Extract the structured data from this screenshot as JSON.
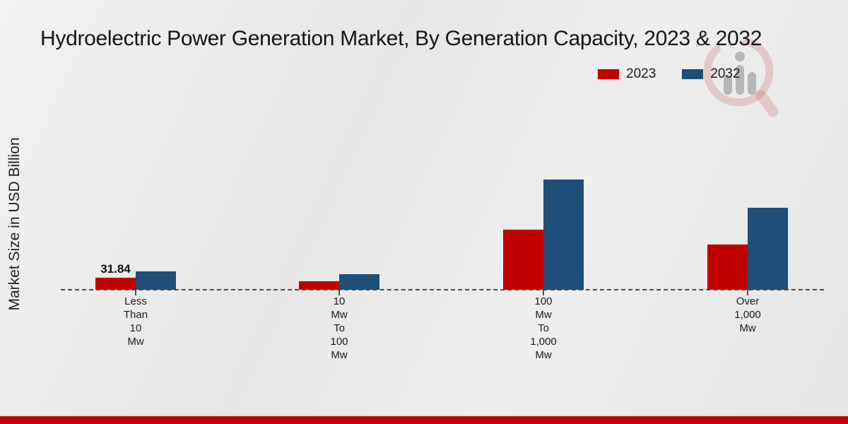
{
  "title": "Hydroelectric Power Generation Market, By Generation Capacity, 2023 & 2032",
  "ylabel": "Market Size in USD Billion",
  "legend": {
    "items": [
      {
        "label": "2023",
        "color": "#c00000"
      },
      {
        "label": "2032",
        "color": "#1f4e79"
      }
    ]
  },
  "watermark": {
    "name": "market-research-future-logo"
  },
  "footer": {
    "band_color": "#c00000"
  },
  "chart_data": {
    "type": "bar",
    "title": "Hydroelectric Power Generation Market, By Generation Capacity, 2023 & 2032",
    "xlabel": "",
    "ylabel": "Market Size in USD Billion",
    "categories": [
      "Less Than 10 Mw",
      "10 Mw To 100 Mw",
      "100 Mw To 1,000 Mw",
      "Over 1,000 Mw"
    ],
    "categories_multiline": [
      [
        "Less",
        "Than",
        "10",
        "Mw"
      ],
      [
        "10",
        "Mw",
        "To",
        "100",
        "Mw"
      ],
      [
        "100",
        "Mw",
        "To",
        "1,000",
        "Mw"
      ],
      [
        "Over",
        "1,000",
        "Mw"
      ]
    ],
    "series": [
      {
        "name": "2023",
        "color": "#c00000",
        "values": [
          31.84,
          22.5,
          159.2,
          119.9
        ]
      },
      {
        "name": "2032",
        "color": "#1f4e79",
        "values": [
          48.7,
          41.2,
          292.1,
          217.2
        ]
      }
    ],
    "data_label": {
      "series": "2023",
      "category_index": 0,
      "text": "31.84"
    },
    "ylim": [
      0,
      320
    ],
    "grid": false,
    "legend_position": "top-right",
    "baseline_style": "dashed"
  }
}
